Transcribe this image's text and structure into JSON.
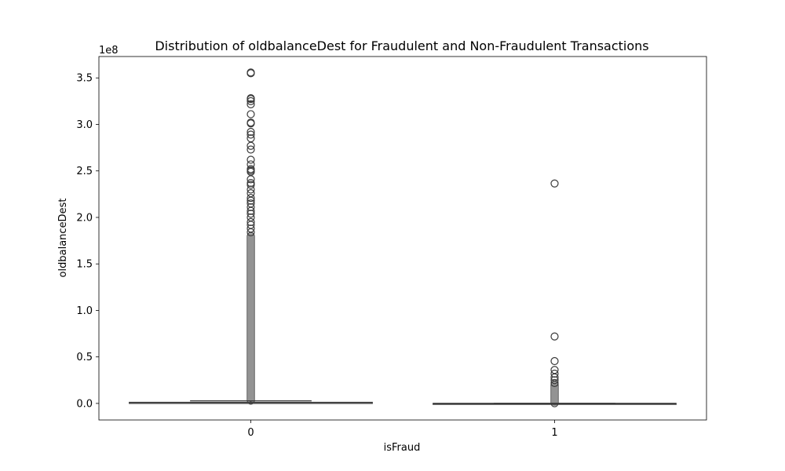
{
  "chart_data": {
    "type": "box",
    "title": "Distribution of oldbalanceDest for Fraudulent and Non-Fraudulent Transactions",
    "xlabel": "isFraud",
    "ylabel": "oldbalanceDest",
    "y_offset_label": "1e8",
    "ylim": [
      -17800000,
      373000000
    ],
    "yticks": [
      0,
      50000000,
      100000000,
      150000000,
      200000000,
      250000000,
      300000000,
      350000000
    ],
    "ytick_labels": [
      "0.0",
      "0.5",
      "1.0",
      "1.5",
      "2.0",
      "2.5",
      "3.0",
      "3.5"
    ],
    "categories": [
      "0",
      "1"
    ],
    "colors": {
      "box_fill": "#ffffff",
      "line": "#3a3a3a",
      "axes": "#000000"
    },
    "boxes": [
      {
        "category": "0",
        "q1": 0,
        "median": 0,
        "q3": 1200000,
        "whisker_low": 0,
        "whisker_high": 2800000,
        "dense_outlier_range": [
          3000000,
          180000000
        ],
        "outliers": [
          355800000,
          355000000,
          328200000,
          327300000,
          325000000,
          321600000,
          311000000,
          302000000,
          301000000,
          292000000,
          289000000,
          285000000,
          277000000,
          273000000,
          262000000,
          257000000,
          252000000,
          250500000,
          249000000,
          241000000,
          237000000,
          235000000,
          230000000,
          226000000,
          221000000,
          218000000,
          215000000,
          211000000,
          207000000,
          204000000,
          200000000,
          195000000,
          192000000,
          188000000,
          184000000
        ]
      },
      {
        "category": "1",
        "q1": 0,
        "median": 0,
        "q3": 0,
        "whisker_low": 0,
        "whisker_high": 0,
        "dense_outlier_range": [
          200000,
          20000000
        ],
        "outliers": [
          236500000,
          72000000,
          45500000,
          36000000,
          32000000,
          28000000,
          25000000,
          22000000
        ]
      }
    ]
  }
}
